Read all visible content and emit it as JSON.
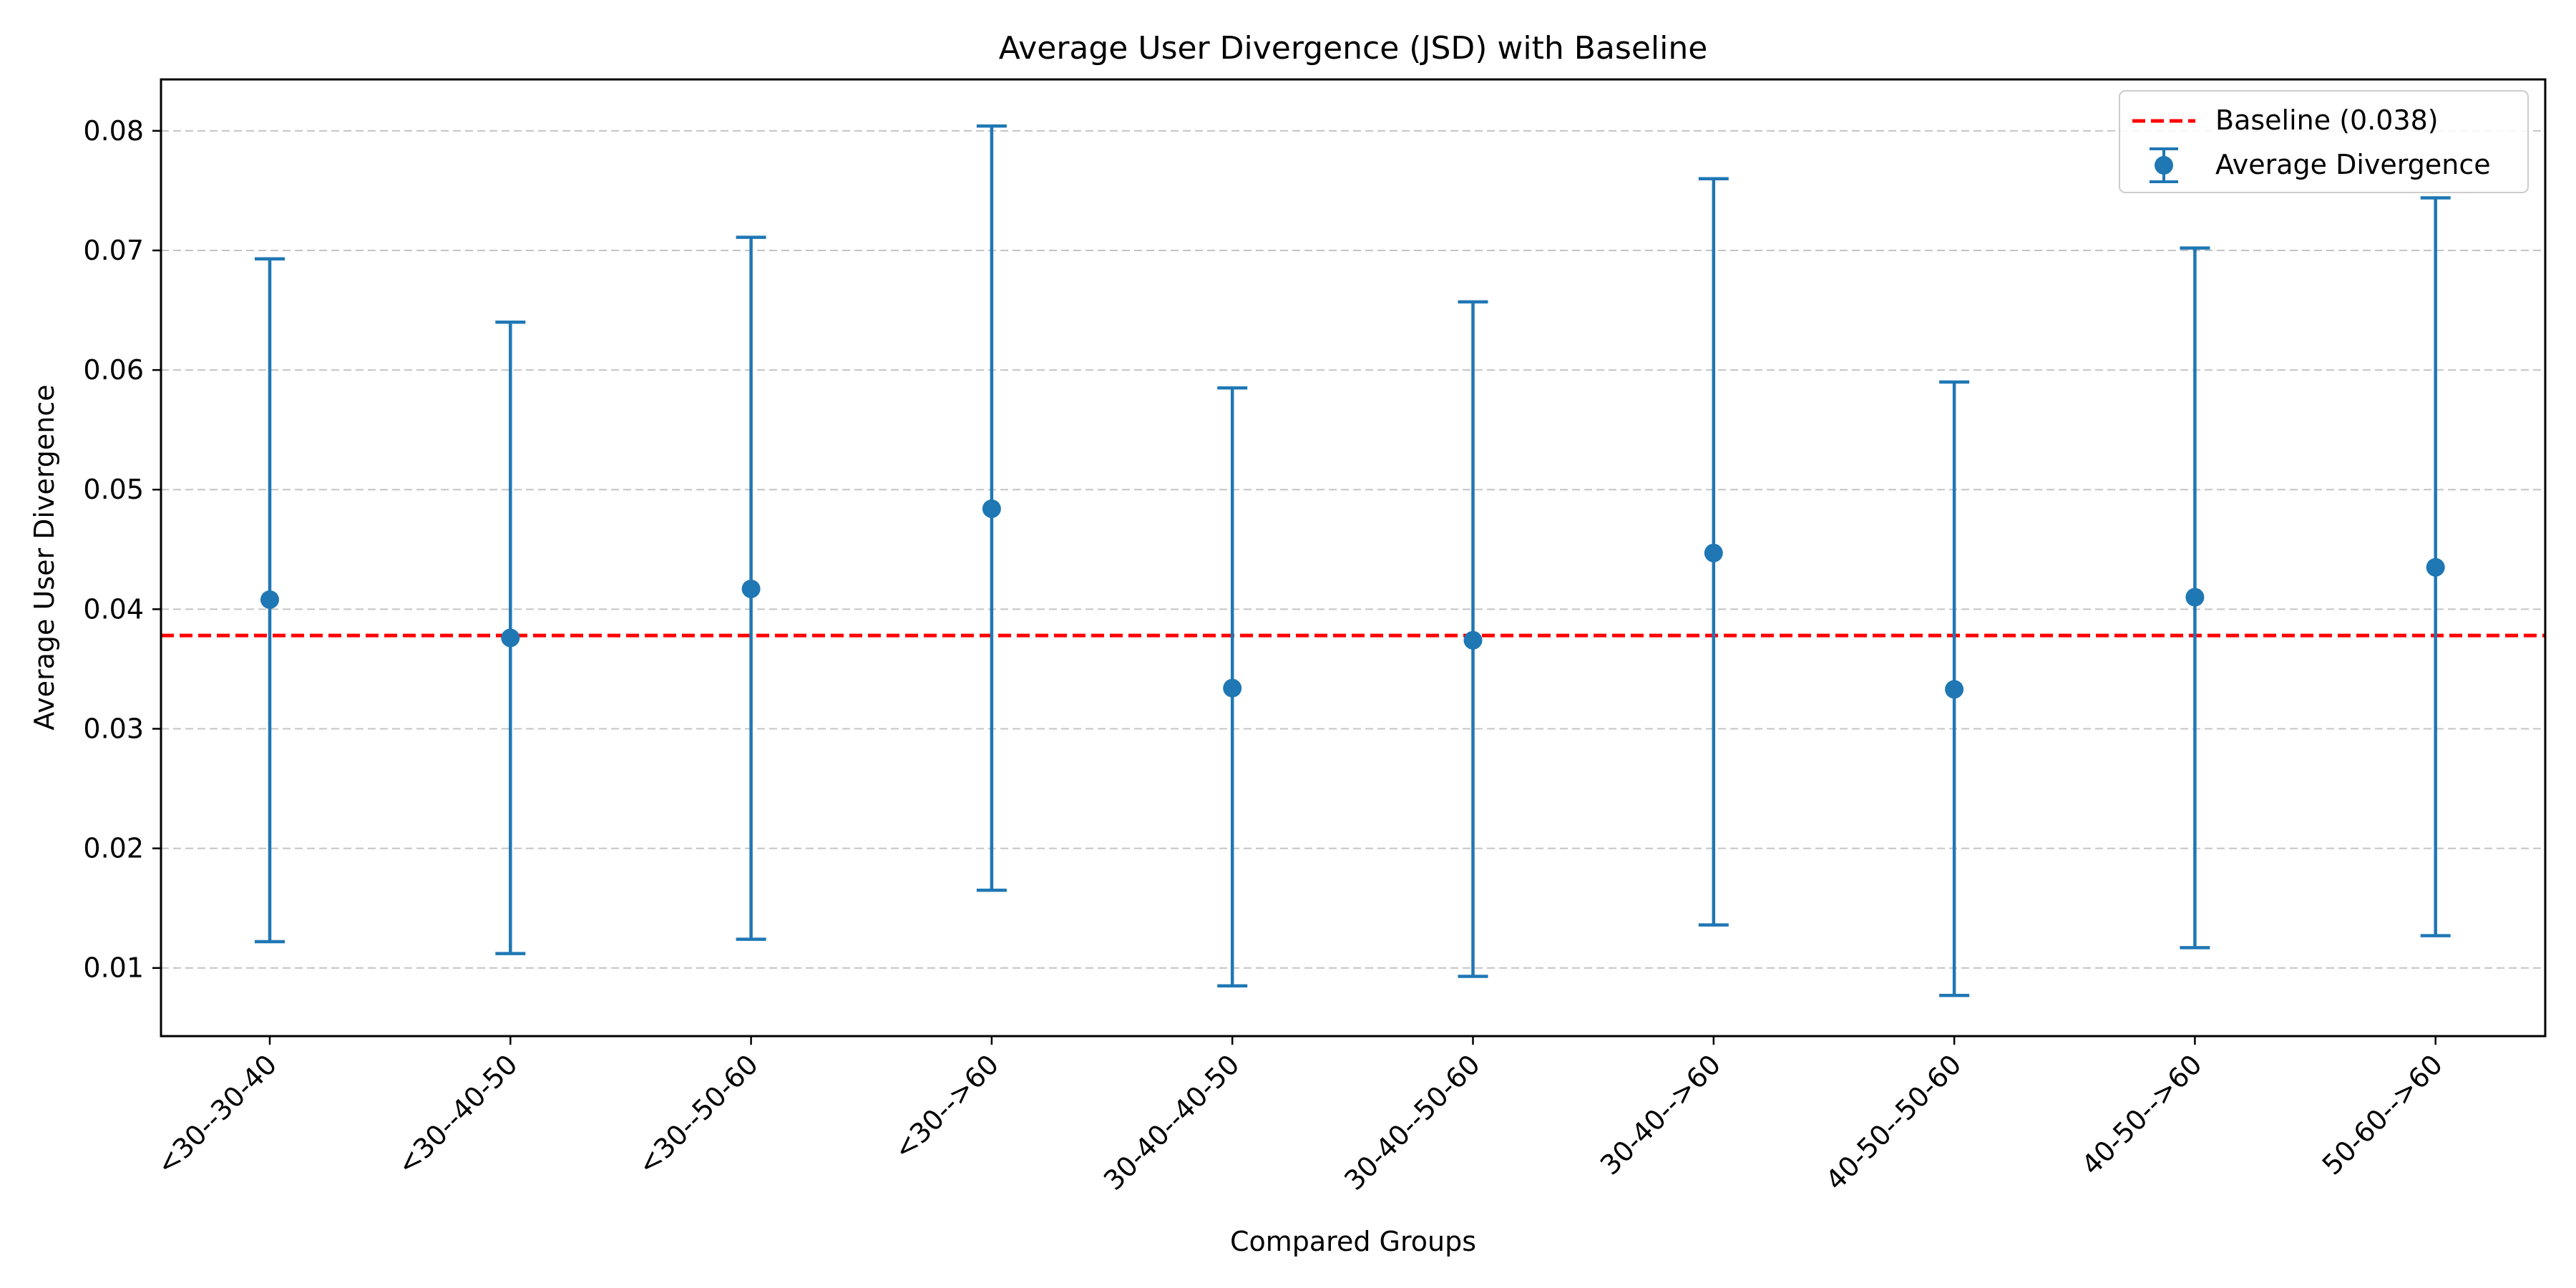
{
  "chart_data": {
    "type": "errorbar",
    "title": "Average User Divergence (JSD) with Baseline",
    "xlabel": "Compared Groups",
    "ylabel": "Average User Divergence",
    "ylim": [
      0.0043,
      0.0843
    ],
    "yticks": [
      0.01,
      0.02,
      0.03,
      0.04,
      0.05,
      0.06,
      0.07,
      0.08
    ],
    "ytick_labels": [
      "0.01",
      "0.02",
      "0.03",
      "0.04",
      "0.05",
      "0.06",
      "0.07",
      "0.08"
    ],
    "grid": "y-dashed",
    "categories": [
      "<30--30-40",
      "<30--40-50",
      "<30--50-60",
      "<30-->60",
      "30-40--40-50",
      "30-40--50-60",
      "30-40-->60",
      "40-50--50-60",
      "40-50-->60",
      "50-60-->60"
    ],
    "series": [
      {
        "name": "Average Divergence",
        "values": [
          0.0408,
          0.0376,
          0.0417,
          0.0484,
          0.0334,
          0.0374,
          0.0447,
          0.0333,
          0.041,
          0.0435
        ],
        "lower": [
          0.0122,
          0.0112,
          0.0124,
          0.0165,
          0.0085,
          0.0093,
          0.0136,
          0.0077,
          0.0117,
          0.0127
        ],
        "upper": [
          0.0693,
          0.064,
          0.0711,
          0.0804,
          0.0585,
          0.0657,
          0.076,
          0.059,
          0.0702,
          0.0744
        ],
        "color": "#1f77b4"
      }
    ],
    "baseline": {
      "name": "Baseline (0.038)",
      "value": 0.0378,
      "color": "#ff0000"
    },
    "legend": {
      "position": "top-right",
      "entries": [
        "Baseline (0.038)",
        "Average Divergence"
      ]
    }
  }
}
